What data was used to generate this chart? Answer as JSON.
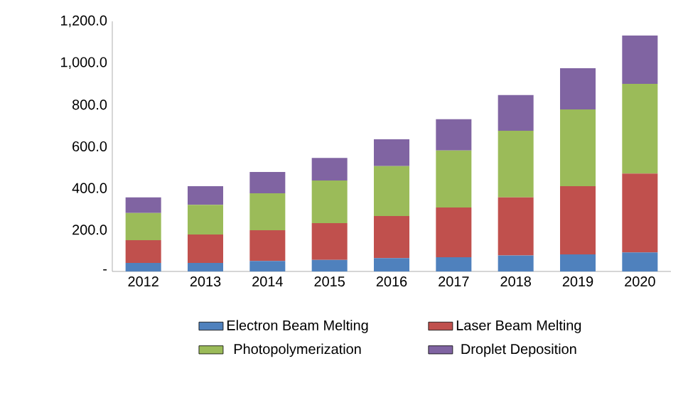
{
  "chart_data": {
    "type": "bar",
    "stacked": true,
    "legend": "bottom",
    "categories": [
      "2012",
      "2013",
      "2014",
      "2015",
      "2016",
      "2017",
      "2018",
      "2019",
      "2020"
    ],
    "ylim": [
      0,
      1200
    ],
    "yticks": [
      {
        "value": 0,
        "label": "-"
      },
      {
        "value": 200,
        "label": "200.0"
      },
      {
        "value": 400,
        "label": "400.0"
      },
      {
        "value": 600,
        "label": "600.0"
      },
      {
        "value": 800,
        "label": "800.0"
      },
      {
        "value": 1000,
        "label": "1,000.0"
      },
      {
        "value": 1200,
        "label": "1,200.0"
      }
    ],
    "series": [
      {
        "name": "Electron Beam Melting",
        "color": "#4f81bd",
        "values": [
          41,
          41,
          50,
          55,
          64,
          68,
          77,
          82,
          91
        ]
      },
      {
        "name": "Laser Beam Melting",
        "color": "#c0504d",
        "values": [
          109,
          136,
          148,
          177,
          202,
          239,
          278,
          327,
          379
        ]
      },
      {
        "name": "Photopolymerization",
        "color": "#9bbb59",
        "values": [
          130,
          143,
          177,
          204,
          239,
          273,
          320,
          368,
          430
        ]
      },
      {
        "name": "Droplet Deposition",
        "color": "#8064a2",
        "values": [
          75,
          89,
          102,
          109,
          129,
          150,
          171,
          198,
          232
        ]
      }
    ]
  }
}
